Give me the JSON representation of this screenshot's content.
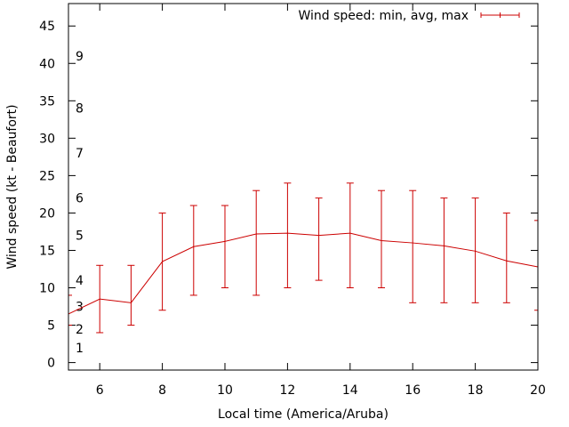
{
  "chart_data": {
    "type": "line",
    "title": "",
    "xlabel": "Local time (America/Aruba)",
    "ylabel": "Wind speed (kt - Beaufort)",
    "xlim": [
      5,
      20
    ],
    "ylim": [
      -1,
      48
    ],
    "grid": false,
    "legend_position": "top-right",
    "x_ticks": [
      6,
      8,
      10,
      12,
      14,
      16,
      18,
      20
    ],
    "y_ticks": [
      0,
      5,
      10,
      15,
      20,
      25,
      30,
      35,
      40,
      45
    ],
    "beaufort_labels": [
      {
        "label": "1",
        "kt": 2
      },
      {
        "label": "2",
        "kt": 4.5
      },
      {
        "label": "3",
        "kt": 7.5
      },
      {
        "label": "4",
        "kt": 11
      },
      {
        "label": "5",
        "kt": 17
      },
      {
        "label": "6",
        "kt": 22
      },
      {
        "label": "7",
        "kt": 28
      },
      {
        "label": "8",
        "kt": 34
      },
      {
        "label": "9",
        "kt": 41
      }
    ],
    "series": [
      {
        "name": "Wind speed: min, avg, max",
        "color": "#cc0000",
        "points": [
          {
            "x": 5,
            "min": 5,
            "avg": 6.5,
            "max": 9
          },
          {
            "x": 6,
            "min": 4,
            "avg": 8.5,
            "max": 13
          },
          {
            "x": 7,
            "min": 5,
            "avg": 8,
            "max": 13
          },
          {
            "x": 8,
            "min": 7,
            "avg": 13.5,
            "max": 20
          },
          {
            "x": 9,
            "min": 9,
            "avg": 15.5,
            "max": 21
          },
          {
            "x": 10,
            "min": 10,
            "avg": 16.2,
            "max": 21
          },
          {
            "x": 11,
            "min": 9,
            "avg": 17.2,
            "max": 23
          },
          {
            "x": 12,
            "min": 10,
            "avg": 17.3,
            "max": 24
          },
          {
            "x": 13,
            "min": 11,
            "avg": 17,
            "max": 22
          },
          {
            "x": 14,
            "min": 10,
            "avg": 17.3,
            "max": 24
          },
          {
            "x": 15,
            "min": 10,
            "avg": 16.3,
            "max": 23
          },
          {
            "x": 16,
            "min": 8,
            "avg": 16,
            "max": 23
          },
          {
            "x": 17,
            "min": 8,
            "avg": 15.6,
            "max": 22
          },
          {
            "x": 18,
            "min": 8,
            "avg": 14.9,
            "max": 22
          },
          {
            "x": 19,
            "min": 8,
            "avg": 13.6,
            "max": 20
          },
          {
            "x": 20,
            "min": 7,
            "avg": 12.8,
            "max": 19
          }
        ]
      }
    ]
  }
}
